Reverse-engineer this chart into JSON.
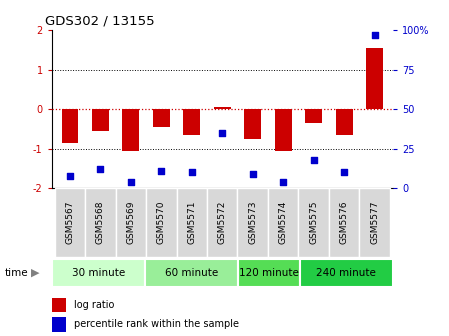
{
  "title": "GDS302 / 13155",
  "samples": [
    "GSM5567",
    "GSM5568",
    "GSM5569",
    "GSM5570",
    "GSM5571",
    "GSM5572",
    "GSM5573",
    "GSM5574",
    "GSM5575",
    "GSM5576",
    "GSM5577"
  ],
  "log_ratio": [
    -0.85,
    -0.55,
    -1.05,
    -0.45,
    -0.65,
    0.05,
    -0.75,
    -1.05,
    -0.35,
    -0.65,
    1.55
  ],
  "percentile": [
    8,
    12,
    4,
    11,
    10,
    35,
    9,
    4,
    18,
    10,
    97
  ],
  "bar_color": "#cc0000",
  "dot_color": "#0000cc",
  "ylim_left": [
    -2,
    2
  ],
  "ylim_right": [
    0,
    100
  ],
  "yticks_left": [
    -2,
    -1,
    0,
    1,
    2
  ],
  "yticks_right": [
    0,
    25,
    50,
    75,
    100
  ],
  "ytick_labels_right": [
    "0",
    "25",
    "50",
    "75",
    "100%"
  ],
  "groups": [
    {
      "label": "30 minute",
      "start": 0,
      "end": 3,
      "color": "#ccffcc"
    },
    {
      "label": "60 minute",
      "start": 3,
      "end": 6,
      "color": "#99ee99"
    },
    {
      "label": "120 minute",
      "start": 6,
      "end": 8,
      "color": "#55dd55"
    },
    {
      "label": "240 minute",
      "start": 8,
      "end": 11,
      "color": "#22cc44"
    }
  ],
  "time_label": "time",
  "legend_red": "log ratio",
  "legend_blue": "percentile rank within the sample",
  "hline_color": "#cc0000",
  "hline_style": ":",
  "grid_color": "#000000",
  "grid_style": ":"
}
